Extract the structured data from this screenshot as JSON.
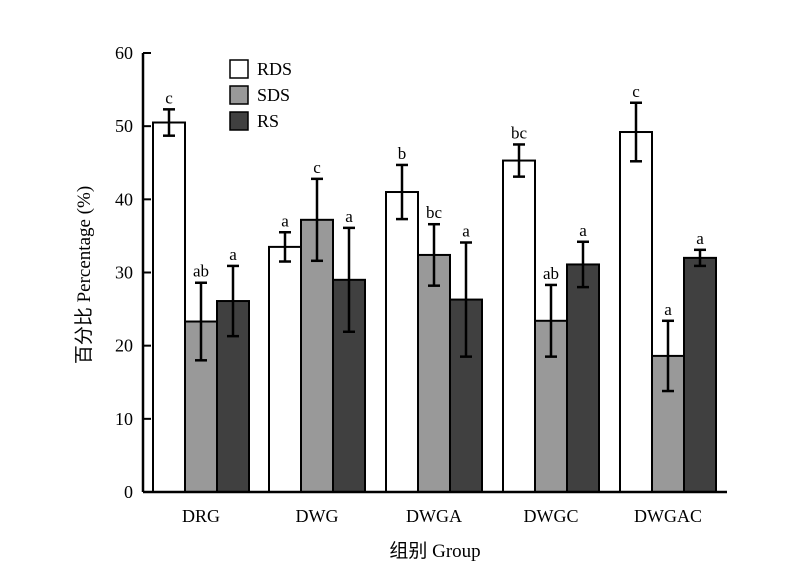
{
  "chart_data": {
    "type": "bar",
    "title": "",
    "xlabel": "组别 Group",
    "ylabel": "百分比 Percentage (%)",
    "ylim": [
      0,
      60
    ],
    "yticks": [
      0,
      10,
      20,
      30,
      40,
      50,
      60
    ],
    "categories": [
      "DRG",
      "DWG",
      "DWGA",
      "DWGC",
      "DWGAC"
    ],
    "legend_position": "top-left",
    "grid": false,
    "series": [
      {
        "name": "RDS",
        "color": "#ffffff",
        "values": [
          50.5,
          33.5,
          41.0,
          45.3,
          49.2
        ],
        "errors": [
          1.8,
          2.0,
          3.7,
          2.2,
          4.0
        ],
        "letters": [
          "c",
          "a",
          "b",
          "bc",
          "c"
        ]
      },
      {
        "name": "SDS",
        "color": "#999999",
        "values": [
          23.3,
          37.2,
          32.4,
          23.4,
          18.6
        ],
        "errors": [
          5.3,
          5.6,
          4.2,
          4.9,
          4.8
        ],
        "letters": [
          "ab",
          "c",
          "bc",
          "ab",
          "a"
        ]
      },
      {
        "name": "RS",
        "color": "#404040",
        "values": [
          26.1,
          29.0,
          26.3,
          31.1,
          32.0
        ],
        "errors": [
          4.8,
          7.1,
          7.8,
          3.1,
          1.1
        ],
        "letters": [
          "a",
          "a",
          "a",
          "a",
          "a"
        ]
      }
    ]
  }
}
